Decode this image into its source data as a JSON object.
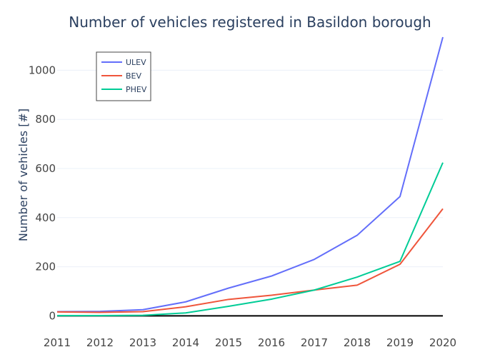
{
  "chart_data": {
    "type": "line",
    "title": "Number of vehicles registered in Basildon borough",
    "xlabel": "",
    "ylabel": "Number of vehicles [#]",
    "x": [
      2011,
      2012,
      2013,
      2014,
      2015,
      2016,
      2017,
      2018,
      2019,
      2020
    ],
    "xlim": [
      2011,
      2020
    ],
    "ylim": [
      -60,
      1135
    ],
    "yticks": [
      0,
      200,
      400,
      600,
      800,
      1000
    ],
    "grid": true,
    "legend_position": "top-left",
    "series": [
      {
        "name": "ULEV",
        "color": "#636efa",
        "values": [
          17,
          18,
          25,
          57,
          113,
          162,
          230,
          328,
          486,
          1135
        ]
      },
      {
        "name": "BEV",
        "color": "#ef553b",
        "values": [
          16,
          14,
          17,
          37,
          67,
          84,
          105,
          125,
          210,
          436
        ]
      },
      {
        "name": "PHEV",
        "color": "#00cc96",
        "values": [
          1,
          1,
          2,
          12,
          39,
          68,
          105,
          158,
          222,
          624
        ]
      }
    ],
    "zero_line_color": "#000000"
  }
}
